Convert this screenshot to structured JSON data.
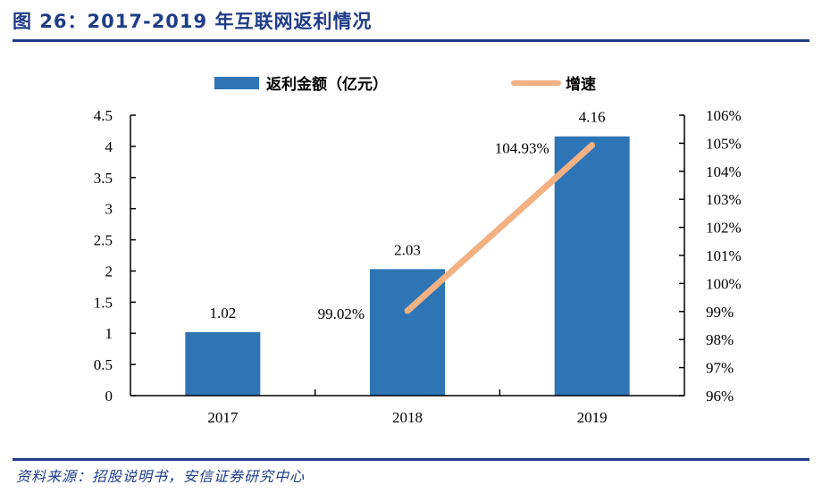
{
  "header": {
    "title": "图 26：2017-2019 年互联网返利情况"
  },
  "footer": {
    "source": "资料来源：招股说明书，安信证券研究中心"
  },
  "colors": {
    "bar": "#2e75b6",
    "line": "#f4b183",
    "rule": "#1f3c88",
    "axis": "#000000"
  },
  "chart_data": {
    "type": "bar+line",
    "title": "",
    "categories": [
      "2017",
      "2018",
      "2019"
    ],
    "series": [
      {
        "name": "返利金额（亿元）",
        "type": "bar",
        "axis": "left",
        "values": [
          1.02,
          2.03,
          4.16
        ],
        "labels": [
          "1.02",
          "2.03",
          "4.16"
        ]
      },
      {
        "name": "增速",
        "type": "line",
        "axis": "right",
        "values": [
          null,
          99.02,
          104.93
        ],
        "labels": [
          "",
          "99.02%",
          "104.93%"
        ]
      }
    ],
    "y_left": {
      "range": [
        0,
        4.5
      ],
      "ticks": [
        "0",
        "0.5",
        "1",
        "1.5",
        "2",
        "2.5",
        "3",
        "3.5",
        "4",
        "4.5"
      ]
    },
    "y_right": {
      "range": [
        96,
        106
      ],
      "ticks": [
        "96%",
        "97%",
        "98%",
        "99%",
        "100%",
        "101%",
        "102%",
        "103%",
        "104%",
        "105%",
        "106%"
      ]
    },
    "legend": "top-center",
    "grid": false
  }
}
